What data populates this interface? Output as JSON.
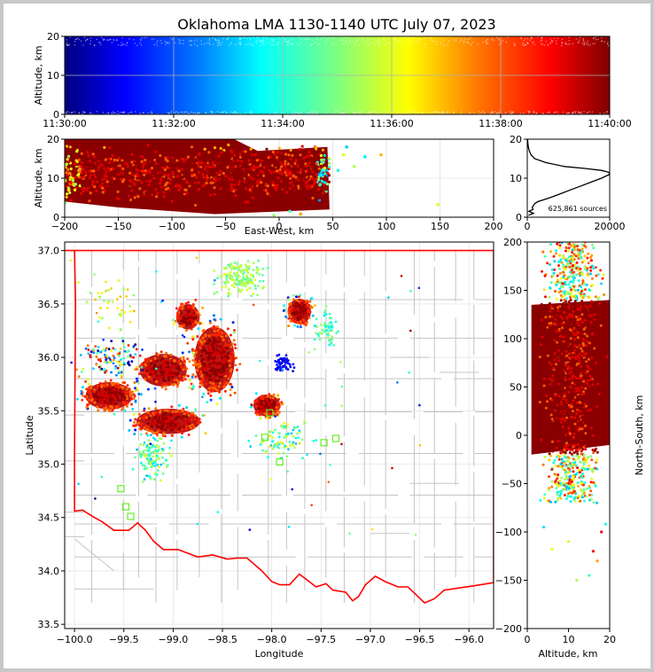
{
  "chart_data": [
    {
      "type": "scatter",
      "panel": "altitude-time",
      "title": "Oklahoma LMA 1130-1140 UTC July 07, 2023",
      "xlabel": "",
      "ylabel": "Altitude, km",
      "xticks": [
        "11:30:00",
        "11:32:00",
        "11:34:00",
        "11:36:00",
        "11:38:00",
        "11:40:00"
      ],
      "yticks": [
        "0",
        "10",
        "20"
      ],
      "xlim": [
        "11:30:00",
        "11:40:00"
      ],
      "ylim": [
        0,
        20
      ],
      "grid": true,
      "colormap": "jet",
      "color_by": "time"
    },
    {
      "type": "scatter",
      "panel": "altitude-east-west",
      "xlabel": "East-West, km",
      "ylabel": "Altitude, km",
      "xticks": [
        "−200",
        "−150",
        "−100",
        "−50",
        "0",
        "50",
        "100",
        "150",
        "200"
      ],
      "yticks": [
        "0",
        "10",
        "20"
      ],
      "xlim": [
        -200,
        200
      ],
      "ylim": [
        0,
        20
      ],
      "grid": true,
      "source_extent_x": [
        -200,
        47
      ],
      "source_extent_z": [
        0,
        20
      ]
    },
    {
      "type": "line",
      "panel": "altitude-histogram",
      "xticks": [
        "0",
        "20000"
      ],
      "yticks": [
        "0",
        "10",
        "20"
      ],
      "xlim": [
        0,
        20000
      ],
      "ylim": [
        0,
        20
      ],
      "annotation": "625,861 sources",
      "profile": {
        "altitude_km": [
          0.5,
          1,
          1.5,
          2,
          2.5,
          3,
          3.5,
          4,
          5,
          6,
          7,
          8,
          9,
          10,
          11,
          11.5,
          12,
          12.5,
          13,
          14,
          15,
          16,
          17,
          18,
          19,
          20
        ],
        "count": [
          300,
          1500,
          400,
          1400,
          1200,
          1500,
          1800,
          2600,
          5500,
          8000,
          10500,
          13000,
          15500,
          18000,
          20000,
          19800,
          18000,
          14000,
          9000,
          4500,
          1800,
          900,
          500,
          250,
          120,
          80
        ]
      }
    },
    {
      "type": "scatter",
      "panel": "plan-view",
      "xlabel": "Longitude",
      "ylabel": "Latitude",
      "xticks": [
        "−100.0",
        "−99.5",
        "−99.0",
        "−98.5",
        "−98.0",
        "−97.5",
        "−97.0",
        "−96.5",
        "−96.0"
      ],
      "yticks": [
        "33.5",
        "34.0",
        "34.5",
        "35.0",
        "35.5",
        "36.0",
        "36.5",
        "37.0"
      ],
      "xlim": [
        -100.1,
        -95.75
      ],
      "ylim": [
        33.46,
        37.08
      ],
      "grid": true,
      "state_border_color": "#ff0000",
      "county_line_color": "#c0c0c0",
      "stations": [
        {
          "lon": -98.02,
          "lat": 35.48
        },
        {
          "lon": -97.35,
          "lat": 35.24
        },
        {
          "lon": -97.92,
          "lat": 35.02
        },
        {
          "lon": -99.53,
          "lat": 34.77
        },
        {
          "lon": -99.48,
          "lat": 34.6
        },
        {
          "lon": -99.43,
          "lat": 34.51
        },
        {
          "lon": -97.47,
          "lat": 35.2
        },
        {
          "lon": -98.07,
          "lat": 35.25
        }
      ]
    },
    {
      "type": "scatter",
      "panel": "north-south-altitude",
      "xlabel": "Altitude, km",
      "ylabel": "North-South, km",
      "xticks": [
        "0",
        "10",
        "20"
      ],
      "yticks": [
        "−200",
        "−150",
        "−100",
        "−50",
        "0",
        "50",
        "100",
        "150",
        "200"
      ],
      "xlim": [
        0,
        20
      ],
      "ylim": [
        -200,
        200
      ]
    }
  ],
  "colors": {
    "state_border": "#ff0000",
    "stations": "#66ee22",
    "histogram_line": "#000000"
  }
}
